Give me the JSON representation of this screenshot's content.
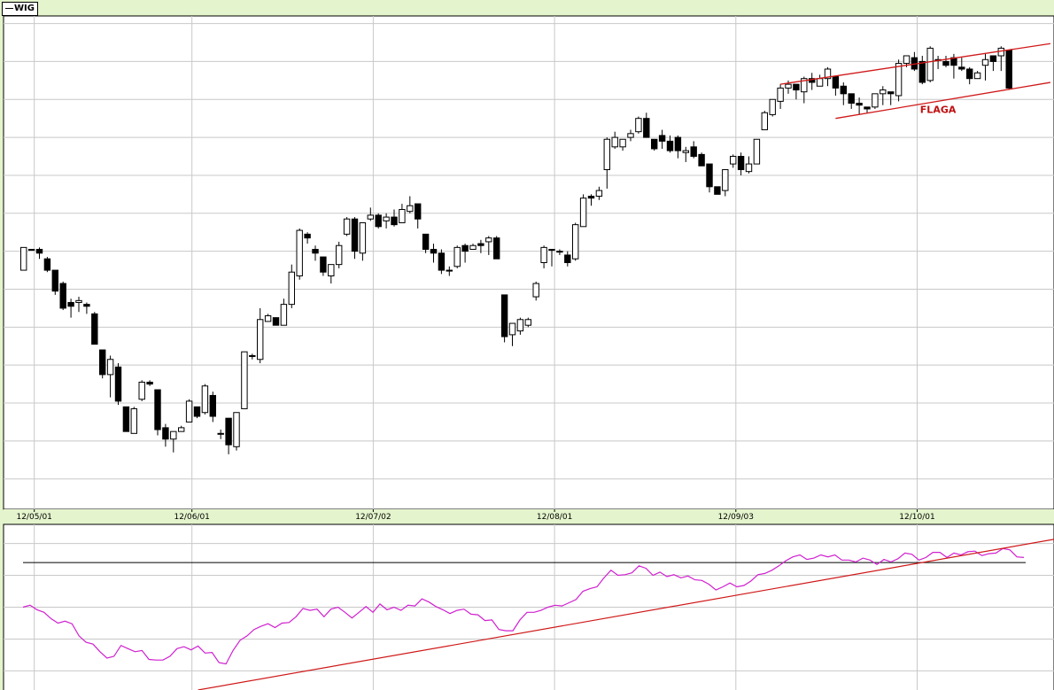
{
  "legend": {
    "label": "WIG"
  },
  "colors": {
    "background": "#e4f4cc",
    "panel": "#ffffff",
    "grid": "#c8c8c8",
    "candle": "#000000",
    "trendline": "#d01818",
    "indicator": "#d020d0",
    "annotation": "#c01010"
  },
  "chart_data": [
    {
      "type": "candlestick",
      "name": "price",
      "series_label": "WIG",
      "ylim": [
        33000,
        46000
      ],
      "grid": true,
      "x_tick_labels": [
        "12/05/01",
        "12/06/01",
        "12/07/02",
        "12/08/01",
        "12/09/03",
        "12/10/01"
      ],
      "x_tick_index": [
        0,
        20,
        43,
        66,
        89,
        112
      ],
      "annotations": [
        {
          "text": "FLAGA",
          "index": 116,
          "y": 43450
        }
      ],
      "channel_lines": [
        {
          "from": [
            96,
            44200
          ],
          "to": [
            128,
            45200
          ]
        },
        {
          "from": [
            103,
            43300
          ],
          "to": [
            128,
            44170
          ]
        }
      ],
      "candles": [
        [
          39300,
          39900,
          39150,
          40000
        ],
        [
          39850,
          39850,
          39700,
          39950
        ],
        [
          39850,
          39750,
          39900,
          39600
        ],
        [
          39600,
          39300,
          39650,
          39250
        ],
        [
          39300,
          38750,
          39300,
          38650
        ],
        [
          38950,
          38300,
          39000,
          38250
        ],
        [
          38450,
          38350,
          38550,
          38050
        ],
        [
          38450,
          38500,
          38600,
          38200
        ],
        [
          38400,
          38350,
          38450,
          38150
        ],
        [
          38150,
          37350,
          38200,
          37350
        ],
        [
          37200,
          36550,
          37200,
          36450
        ],
        [
          36550,
          36950,
          37050,
          35950
        ],
        [
          36750,
          35850,
          36850,
          35750
        ],
        [
          35700,
          35050,
          35700,
          35050
        ],
        [
          35000,
          35650,
          35700,
          35000
        ],
        [
          35900,
          36350,
          36400,
          35850
        ],
        [
          36350,
          36300,
          36400,
          36250
        ],
        [
          36150,
          35100,
          36150,
          34950
        ],
        [
          35150,
          34850,
          35250,
          34650
        ],
        [
          34850,
          35050,
          35050,
          34500
        ],
        [
          35050,
          35150,
          35200,
          35050
        ],
        [
          35300,
          35850,
          35900,
          35300
        ],
        [
          35700,
          35450,
          35700,
          35400
        ],
        [
          35550,
          36250,
          36300,
          35500
        ],
        [
          36000,
          35450,
          36100,
          35300
        ],
        [
          35000,
          35000,
          35100,
          34850
        ],
        [
          35400,
          34700,
          35400,
          34450
        ],
        [
          34650,
          35550,
          35550,
          34550
        ],
        [
          35650,
          37150,
          37150,
          35650
        ],
        [
          37050,
          37050,
          37100,
          36950
        ],
        [
          36950,
          38000,
          38300,
          36850
        ],
        [
          37950,
          38100,
          38150,
          37950
        ],
        [
          38050,
          37850,
          38050,
          37850
        ],
        [
          37850,
          38400,
          38550,
          37850
        ],
        [
          38400,
          39250,
          39450,
          38300
        ],
        [
          39150,
          40350,
          40400,
          39050
        ],
        [
          40250,
          40150,
          40300,
          40000
        ],
        [
          39850,
          39750,
          39950,
          39550
        ],
        [
          39650,
          39250,
          39650,
          39150
        ],
        [
          39150,
          39450,
          39450,
          38950
        ],
        [
          39450,
          39950,
          40050,
          39350
        ],
        [
          40250,
          40650,
          40700,
          40200
        ],
        [
          40650,
          39800,
          40700,
          39600
        ],
        [
          39750,
          40550,
          40550,
          39550
        ],
        [
          40650,
          40750,
          40950,
          40600
        ],
        [
          40750,
          40450,
          40800,
          40400
        ],
        [
          40600,
          40700,
          40800,
          40400
        ],
        [
          40700,
          40500,
          40900,
          40450
        ],
        [
          40550,
          40900,
          41050,
          40550
        ],
        [
          40850,
          41000,
          41250,
          40800
        ],
        [
          41050,
          40650,
          41050,
          40400
        ],
        [
          40250,
          39850,
          40250,
          39750
        ],
        [
          39850,
          39750,
          40000,
          39500
        ],
        [
          39750,
          39300,
          39850,
          39200
        ],
        [
          39300,
          39300,
          39400,
          39150
        ],
        [
          39400,
          39900,
          39950,
          39350
        ],
        [
          39950,
          39800,
          40000,
          39500
        ],
        [
          39850,
          39950,
          40000,
          39850
        ],
        [
          40000,
          39950,
          40100,
          39750
        ],
        [
          40050,
          40150,
          40200,
          39700
        ],
        [
          40150,
          39600,
          40200,
          39600
        ],
        [
          38650,
          37550,
          38650,
          37400
        ],
        [
          37600,
          37900,
          37900,
          37300
        ],
        [
          37700,
          38000,
          38050,
          37600
        ],
        [
          37850,
          38000,
          38050,
          37800
        ],
        [
          38600,
          38950,
          39000,
          38500
        ],
        [
          39500,
          39900,
          39950,
          39350
        ],
        [
          39850,
          39850,
          39800,
          39400
        ],
        [
          39800,
          39800,
          39850,
          39700
        ],
        [
          39700,
          39500,
          39800,
          39400
        ],
        [
          39600,
          40500,
          40550,
          39550
        ],
        [
          40450,
          41200,
          41300,
          40450
        ],
        [
          41250,
          41200,
          41300,
          41000
        ],
        [
          41250,
          41400,
          41500,
          41150
        ],
        [
          41950,
          42750,
          42800,
          41450
        ],
        [
          42550,
          42800,
          42950,
          42500
        ],
        [
          42550,
          42750,
          42750,
          42450
        ],
        [
          42800,
          42900,
          43000,
          42700
        ],
        [
          42950,
          43300,
          43350,
          42900
        ],
        [
          43300,
          42800,
          43450,
          42800
        ],
        [
          42750,
          42500,
          42750,
          42450
        ],
        [
          42850,
          42700,
          43000,
          42500
        ],
        [
          42700,
          42450,
          42850,
          42400
        ],
        [
          42800,
          42450,
          42850,
          42250
        ],
        [
          42400,
          42450,
          42550,
          42150
        ],
        [
          42550,
          42300,
          42700,
          42250
        ],
        [
          42350,
          42050,
          42400,
          42050
        ],
        [
          42100,
          41500,
          42100,
          41350
        ],
        [
          41500,
          41300,
          41400,
          41300
        ],
        [
          41400,
          41950,
          41950,
          41250
        ],
        [
          42100,
          42300,
          42350,
          42000
        ],
        [
          42300,
          41950,
          42400,
          41800
        ],
        [
          41900,
          42100,
          42300,
          41850
        ],
        [
          42100,
          42750,
          42750,
          42100
        ],
        [
          43000,
          43450,
          43500,
          43000
        ],
        [
          43400,
          43800,
          43800,
          43350
        ],
        [
          43750,
          44100,
          44200,
          43550
        ],
        [
          44100,
          44200,
          44300,
          43950
        ],
        [
          44200,
          44050,
          44150,
          43800
        ],
        [
          44000,
          44350,
          44400,
          43700
        ],
        [
          44350,
          44250,
          44500,
          44050
        ],
        [
          44150,
          44350,
          44450,
          44150
        ],
        [
          44350,
          44600,
          44650,
          44150
        ],
        [
          44400,
          44100,
          44400,
          43900
        ],
        [
          44150,
          43950,
          44250,
          43650
        ],
        [
          43950,
          43700,
          43950,
          43550
        ],
        [
          43700,
          43650,
          43850,
          43400
        ],
        [
          43600,
          43550,
          43550,
          43450
        ],
        [
          43600,
          43950,
          43950,
          43550
        ],
        [
          43950,
          44050,
          44150,
          43650
        ],
        [
          44000,
          43950,
          44000,
          43650
        ],
        [
          43900,
          44750,
          44850,
          43750
        ],
        [
          44750,
          44950,
          44900,
          44650
        ],
        [
          44900,
          44600,
          45050,
          44550
        ],
        [
          44800,
          44250,
          44950,
          44200
        ],
        [
          44300,
          45150,
          45200,
          44250
        ],
        [
          44850,
          44850,
          44950,
          44600
        ],
        [
          44800,
          44700,
          44950,
          44650
        ],
        [
          44900,
          44700,
          45000,
          44350
        ],
        [
          44650,
          44600,
          44900,
          44550
        ],
        [
          44600,
          44350,
          44650,
          44200
        ],
        [
          44350,
          44500,
          44550,
          44350
        ],
        [
          44700,
          44850,
          45000,
          44300
        ],
        [
          44950,
          44800,
          44950,
          44550
        ],
        [
          44950,
          45150,
          45200,
          44550
        ],
        [
          45100,
          44100,
          45100,
          44050
        ]
      ]
    },
    {
      "type": "line",
      "name": "relative-strength",
      "ylim": [
        -1.0,
        1.6
      ],
      "grid": true,
      "reference_level": 1.0,
      "trendline": {
        "from": [
          25,
          -1.0
        ],
        "to": [
          131,
          1.05
        ]
      },
      "values": [
        0.3,
        0.33,
        0.26,
        0.22,
        0.12,
        0.05,
        0.08,
        0.04,
        -0.15,
        -0.25,
        -0.28,
        -0.4,
        -0.5,
        -0.47,
        -0.3,
        -0.35,
        -0.4,
        -0.38,
        -0.52,
        -0.53,
        -0.53,
        -0.47,
        -0.35,
        -0.32,
        -0.37,
        -0.31,
        -0.42,
        -0.41,
        -0.57,
        -0.59,
        -0.38,
        -0.22,
        -0.15,
        -0.05,
        0.0,
        0.04,
        -0.02,
        0.05,
        0.06,
        0.15,
        0.28,
        0.25,
        0.27,
        0.15,
        0.27,
        0.3,
        0.22,
        0.13,
        0.22,
        0.31,
        0.22,
        0.35,
        0.26,
        0.3,
        0.25,
        0.33,
        0.32,
        0.43,
        0.38,
        0.31,
        0.26,
        0.2,
        0.25,
        0.27,
        0.19,
        0.18,
        0.09,
        0.1,
        -0.05,
        -0.07,
        -0.07,
        0.1,
        0.22,
        0.22,
        0.25,
        0.3,
        0.33,
        0.32,
        0.37,
        0.42,
        0.55,
        0.59,
        0.62,
        0.76,
        0.88,
        0.8,
        0.81,
        0.84,
        0.95,
        0.91,
        0.8,
        0.85,
        0.78,
        0.81,
        0.76,
        0.79,
        0.73,
        0.72,
        0.66,
        0.57,
        0.62,
        0.68,
        0.62,
        0.64,
        0.71,
        0.81,
        0.83,
        0.88,
        0.95,
        1.03,
        1.09,
        1.12,
        1.05,
        1.07,
        1.12,
        1.09,
        1.12,
        1.04,
        1.04,
        1.01,
        1.07,
        1.04,
        0.97,
        1.05,
        1.01,
        1.06,
        1.15,
        1.13,
        1.04,
        1.08,
        1.16,
        1.16,
        1.08,
        1.15,
        1.12,
        1.17,
        1.18,
        1.11,
        1.14,
        1.15,
        1.22,
        1.2,
        1.09,
        1.08
      ]
    }
  ]
}
